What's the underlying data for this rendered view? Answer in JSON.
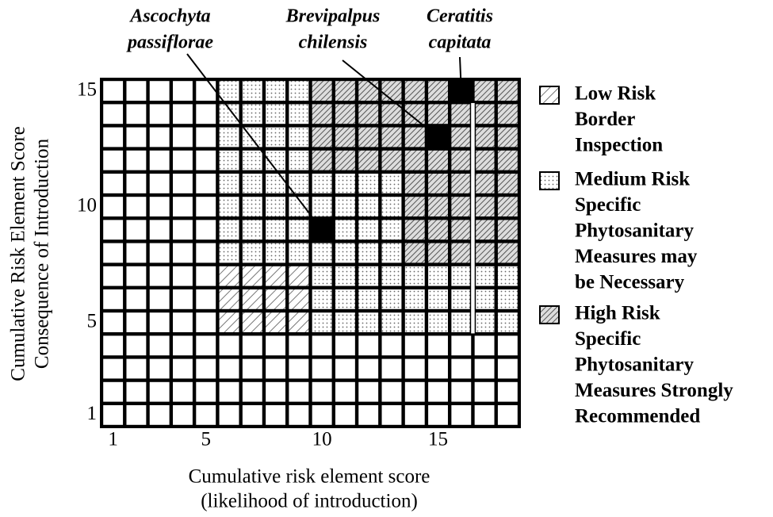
{
  "axes": {
    "x_label": [
      "Cumulative risk element score",
      "(likelihood of introduction)"
    ],
    "y_label": [
      "Cumulative Risk Element Score",
      "Consequence of Introduction"
    ],
    "xticks": [
      1,
      5,
      10,
      15
    ],
    "yticks": [
      1,
      5,
      10,
      15
    ]
  },
  "legend": [
    {
      "lines": [
        "Low Risk",
        "Border",
        "Inspection"
      ]
    },
    {
      "lines": [
        "Medium Risk",
        "Specific",
        "Phytosanitary",
        "Measures may",
        "be Necessary"
      ]
    },
    {
      "lines": [
        "High Risk",
        "Specific",
        "Phytosanitary",
        "Measures Strongly",
        "Recommended"
      ]
    }
  ],
  "species": [
    {
      "lines": [
        "Ascochyta",
        "passiflorae"
      ],
      "x": 10,
      "y": 9
    },
    {
      "lines": [
        "Brevipalpus",
        "chilensis"
      ],
      "x": 15,
      "y": 13
    },
    {
      "lines": [
        "Ceratitis",
        "capitata"
      ],
      "x": 16,
      "y": 15
    }
  ]
}
